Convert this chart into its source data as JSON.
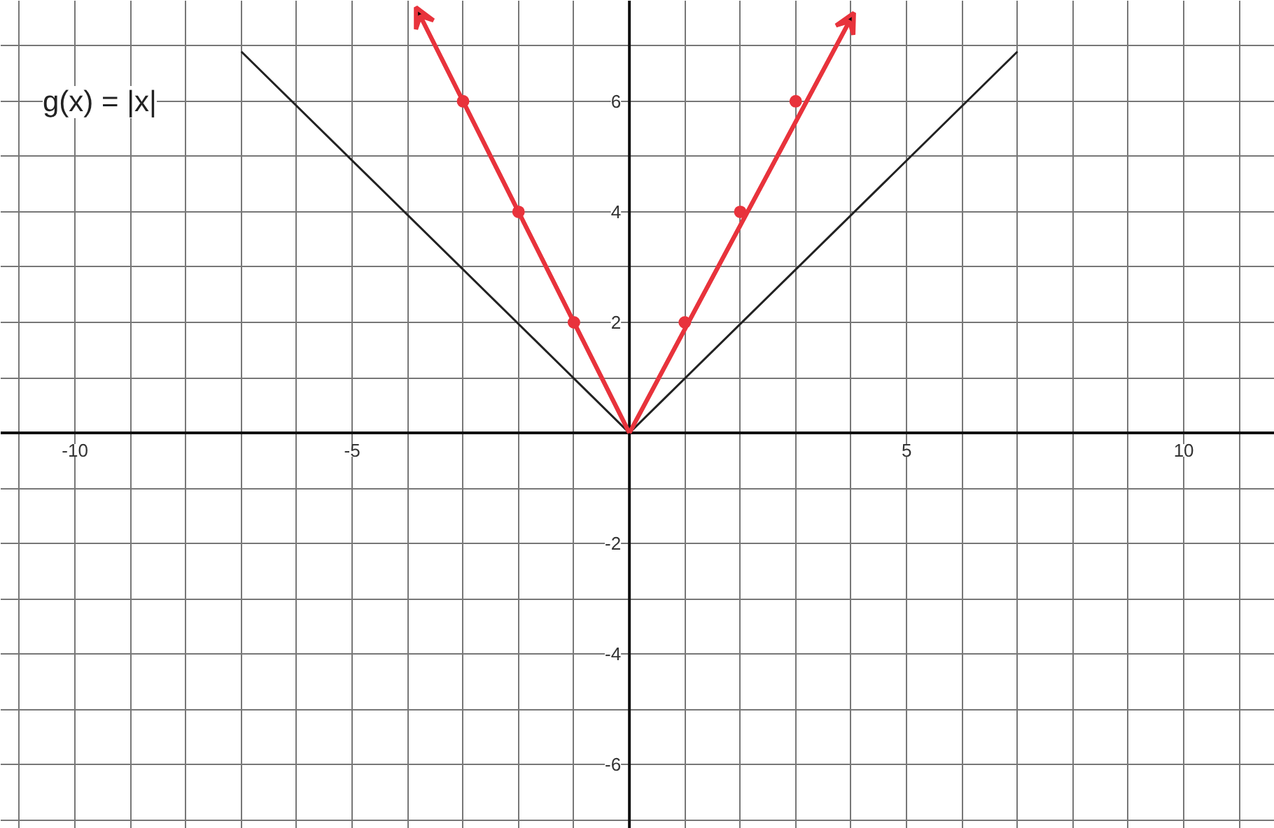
{
  "chart_data": {
    "type": "line",
    "title": "g(x) = |x|",
    "xlim": [
      -11.34,
      11.64
    ],
    "ylim": [
      -7.16,
      7.82
    ],
    "xticks": [
      {
        "value": -11,
        "label": null
      },
      {
        "value": -10,
        "label": "-10"
      },
      {
        "value": -9,
        "label": null
      },
      {
        "value": -8,
        "label": null
      },
      {
        "value": -7,
        "label": null
      },
      {
        "value": -6,
        "label": null
      },
      {
        "value": -5,
        "label": "-5"
      },
      {
        "value": -4,
        "label": null
      },
      {
        "value": -3,
        "label": null
      },
      {
        "value": -2,
        "label": null
      },
      {
        "value": -1,
        "label": null
      },
      {
        "value": 0,
        "label": null
      },
      {
        "value": 1,
        "label": null
      },
      {
        "value": 2,
        "label": null
      },
      {
        "value": 3,
        "label": null
      },
      {
        "value": 4,
        "label": null
      },
      {
        "value": 5,
        "label": "5"
      },
      {
        "value": 6,
        "label": null
      },
      {
        "value": 7,
        "label": null
      },
      {
        "value": 8,
        "label": null
      },
      {
        "value": 9,
        "label": null
      },
      {
        "value": 10,
        "label": "10"
      },
      {
        "value": 11,
        "label": null
      }
    ],
    "yticks": [
      {
        "value": -7,
        "label": null
      },
      {
        "value": -6,
        "label": "-6"
      },
      {
        "value": -5,
        "label": null
      },
      {
        "value": -4,
        "label": "-4"
      },
      {
        "value": -3,
        "label": null
      },
      {
        "value": -2,
        "label": "-2"
      },
      {
        "value": -1,
        "label": null
      },
      {
        "value": 0,
        "label": null
      },
      {
        "value": 1,
        "label": null
      },
      {
        "value": 2,
        "label": "2"
      },
      {
        "value": 3,
        "label": null
      },
      {
        "value": 4,
        "label": "4"
      },
      {
        "value": 5,
        "label": null
      },
      {
        "value": 6,
        "label": "6"
      },
      {
        "value": 7,
        "label": null
      }
    ],
    "grid": true,
    "series": [
      {
        "color": "#222222",
        "x": [
          -7,
          0,
          7
        ],
        "values": [
          6.9,
          0,
          6.9
        ]
      },
      {
        "color": "#e8333c",
        "x": [
          -3.85,
          0,
          4.05
        ],
        "values": [
          7.7,
          0,
          7.6
        ]
      },
      {
        "type": "scatter",
        "color": "#e8333c",
        "marker": "circle",
        "x": [
          -3,
          -2,
          -1,
          1,
          2,
          3
        ],
        "values": [
          6,
          4,
          2,
          2,
          4,
          6
        ]
      }
    ]
  }
}
